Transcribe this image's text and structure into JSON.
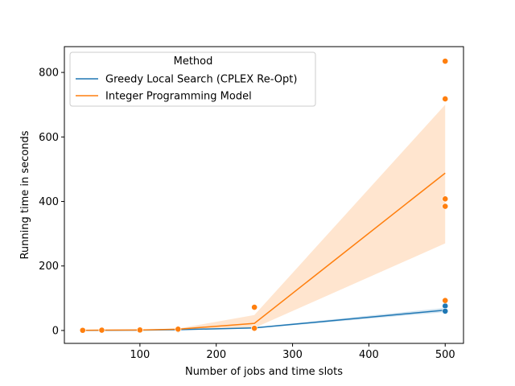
{
  "chart_data": {
    "type": "line",
    "title": "",
    "xlabel": "Number of jobs and time slots",
    "ylabel": "Running time in seconds",
    "xlim": [
      1,
      524
    ],
    "ylim": [
      -40,
      880
    ],
    "x_ticks": [
      100,
      200,
      300,
      400,
      500
    ],
    "y_ticks": [
      0,
      200,
      400,
      600,
      800
    ],
    "x_tick_labels": [
      "100",
      "200",
      "300",
      "400",
      "500"
    ],
    "y_tick_labels": [
      "0",
      "200",
      "400",
      "600",
      "800"
    ],
    "grid": false,
    "legend": {
      "title": "Method",
      "placement": "top-left"
    },
    "x": [
      25,
      50,
      100,
      150,
      250,
      500
    ],
    "series": [
      {
        "name": "Greedy Local Search (CPLEX Re-Opt)",
        "color": "#1f77b4",
        "mean": [
          0.3,
          0.5,
          1.0,
          2.5,
          8,
          63
        ],
        "ci_low": [
          0.2,
          0.4,
          0.8,
          2.0,
          6,
          57
        ],
        "ci_high": [
          0.4,
          0.6,
          1.2,
          3.0,
          10,
          70
        ],
        "points": [
          [
            25,
            0.3
          ],
          [
            50,
            0.5
          ],
          [
            100,
            1
          ],
          [
            150,
            2.5
          ],
          [
            250,
            8
          ],
          [
            500,
            76
          ],
          [
            500,
            60
          ]
        ]
      },
      {
        "name": "Integer Programming Model",
        "color": "#ff7f0e",
        "mean": [
          0.5,
          1.0,
          1.5,
          4,
          22,
          488
        ],
        "ci_low": [
          0.3,
          0.7,
          1.0,
          3,
          8,
          270
        ],
        "ci_high": [
          0.8,
          1.5,
          2.5,
          6,
          48,
          700
        ],
        "points": [
          [
            25,
            0.5
          ],
          [
            50,
            1
          ],
          [
            100,
            1.5
          ],
          [
            150,
            4
          ],
          [
            250,
            72
          ],
          [
            250,
            7
          ],
          [
            500,
            835
          ],
          [
            500,
            718
          ],
          [
            500,
            408
          ],
          [
            500,
            385
          ],
          [
            500,
            93
          ]
        ]
      }
    ]
  }
}
